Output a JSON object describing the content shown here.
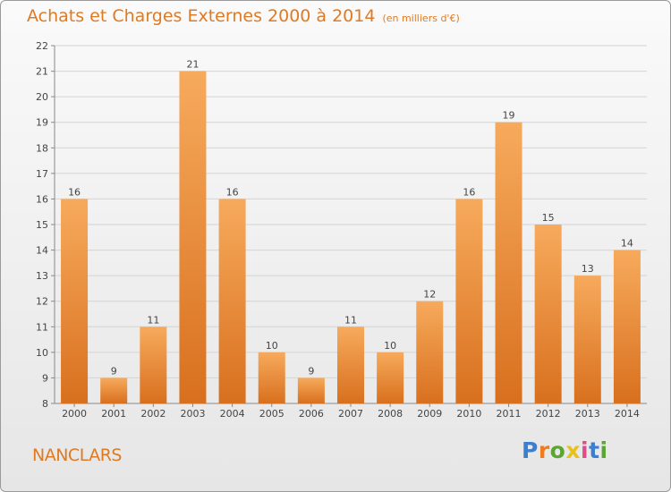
{
  "header": {
    "title": "Achats et Charges Externes 2000 à 2014",
    "subtitle": "(en milliers d'€)"
  },
  "footer": {
    "place": "NANCLARS",
    "logo_letters": [
      "P",
      "r",
      "o",
      "x",
      "i",
      "t",
      "i"
    ]
  },
  "colors": {
    "title": "#e07a22",
    "bar_light": "#f5a75a",
    "bar_dark": "#d9711f",
    "grid": "#d4d4d4"
  },
  "chart_data": {
    "type": "bar",
    "title": "Achats et Charges Externes 2000 à 2014",
    "subtitle": "(en milliers d'€)",
    "categories": [
      "2000",
      "2001",
      "2002",
      "2003",
      "2004",
      "2005",
      "2006",
      "2007",
      "2008",
      "2009",
      "2010",
      "2011",
      "2012",
      "2013",
      "2014"
    ],
    "values": [
      16,
      9,
      11,
      21,
      16,
      10,
      9,
      11,
      10,
      12,
      16,
      19,
      15,
      13,
      14
    ],
    "ylim": [
      8,
      22
    ],
    "yticks": [
      8,
      9,
      10,
      11,
      12,
      13,
      14,
      15,
      16,
      17,
      18,
      19,
      20,
      21,
      22
    ],
    "grid": true,
    "data_labels": true
  }
}
